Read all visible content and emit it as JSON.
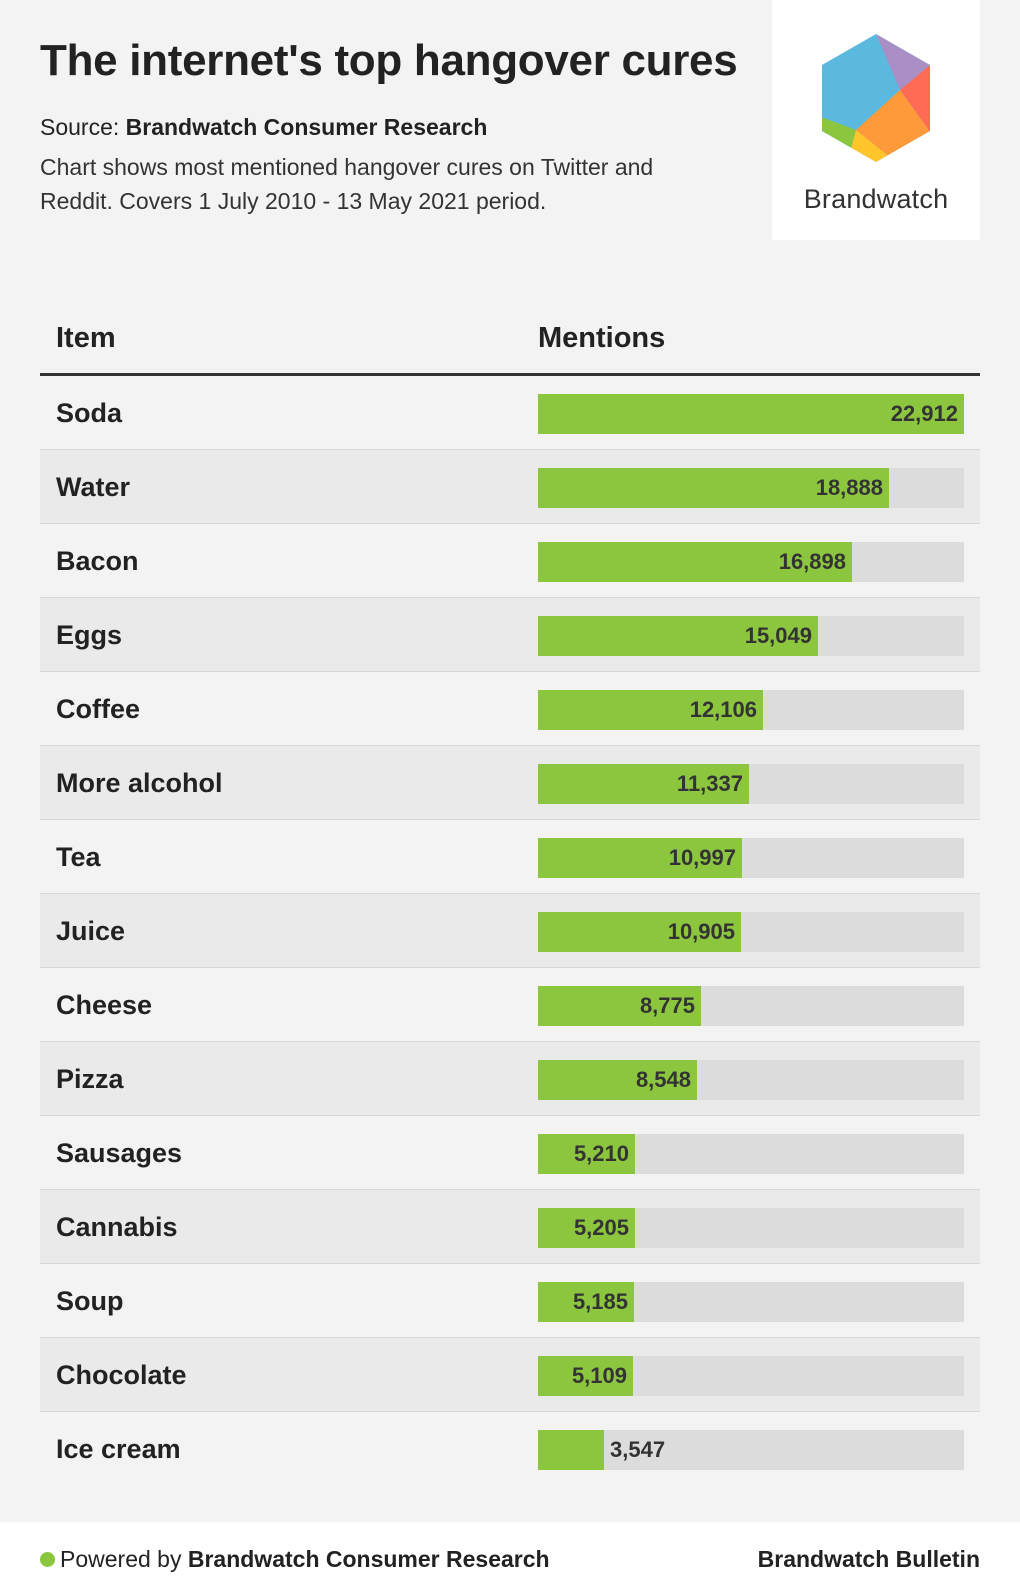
{
  "header": {
    "title": "The internet's top hangover cures",
    "source_prefix": "Source:",
    "source_name": "Brandwatch Consumer Research",
    "description": "Chart shows most mentioned hangover cures on Twitter and Reddit. Covers 1 July 2010 - 13 May 2021 period."
  },
  "logo": {
    "text": "Brandwatch",
    "icon": "brandwatch-hexagon-logo"
  },
  "colors": {
    "bar": "#8cc63f",
    "track": "#dcdcdc",
    "alt_row": "#eaeaea"
  },
  "chart_data": {
    "type": "bar",
    "orientation": "horizontal",
    "column_headers": [
      "Item",
      "Mentions"
    ],
    "categories": [
      "Soda",
      "Water",
      "Bacon",
      "Eggs",
      "Coffee",
      "More alcohol",
      "Tea",
      "Juice",
      "Cheese",
      "Pizza",
      "Sausages",
      "Cannabis",
      "Soup",
      "Chocolate",
      "Ice cream"
    ],
    "values": [
      22912,
      18888,
      16898,
      15049,
      12106,
      11337,
      10997,
      10905,
      8775,
      8548,
      5210,
      5205,
      5185,
      5109,
      3547
    ],
    "value_labels": [
      "22,912",
      "18,888",
      "16,898",
      "15,049",
      "12,106",
      "11,337",
      "10,997",
      "10,905",
      "8,775",
      "8,548",
      "5,210",
      "5,205",
      "5,185",
      "5,109",
      "3,547"
    ],
    "xlim": [
      0,
      22912
    ]
  },
  "footer": {
    "powered_prefix": "Powered by",
    "powered_name": "Brandwatch Consumer Research",
    "bulletin": "Brandwatch Bulletin"
  }
}
